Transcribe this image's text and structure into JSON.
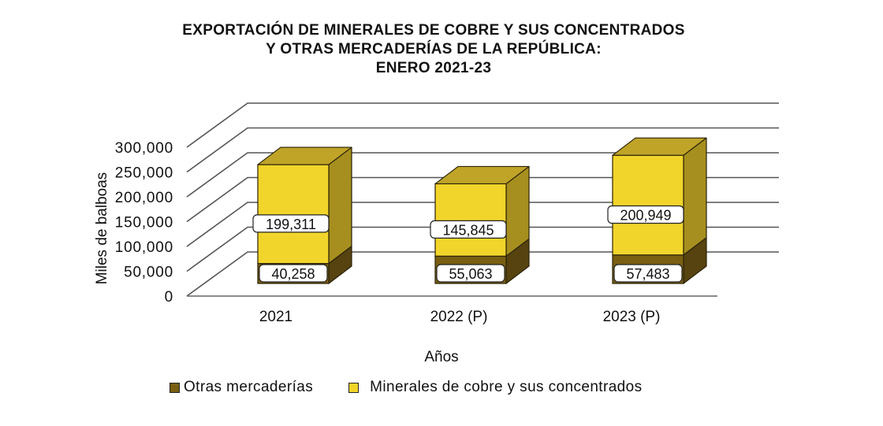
{
  "chart_data": {
    "type": "bar",
    "stacked": true,
    "style": "3d",
    "title": [
      "EXPORTACIÓN  DE MINERALES  DE COBRE  Y SUS CONCENTRADOS",
      "Y OTRAS  MERCADERÍAS  DE LA REPÚBLICA:",
      "ENERO  2021-23"
    ],
    "xlabel": "Años",
    "ylabel": "Miles de balboas",
    "categories": [
      "2021",
      "2022 (P)",
      "2023 (P)"
    ],
    "ylim": [
      0,
      300000
    ],
    "yticks": [
      0,
      50000,
      100000,
      150000,
      200000,
      250000,
      300000
    ],
    "ytick_labels": [
      "0",
      "50,000",
      "100,000",
      "150,000",
      "200,000",
      "250,000",
      "300,000"
    ],
    "grid": true,
    "legend_position": "bottom",
    "series": [
      {
        "name": "Otras mercaderías",
        "values": [
          40258,
          55063,
          57483
        ],
        "labels": [
          "40,258",
          "55,063",
          "57,483"
        ],
        "color": "#7a5f12",
        "top_color": "#6a5210",
        "side_color": "#574310"
      },
      {
        "name": "Minerales de cobre y sus concentrados",
        "values": [
          199311,
          145845,
          200949
        ],
        "labels": [
          "199,311",
          "145,845",
          "200,949"
        ],
        "color": "#f2d52a",
        "top_color": "#bfa428",
        "side_color": "#a68f1e"
      }
    ]
  }
}
